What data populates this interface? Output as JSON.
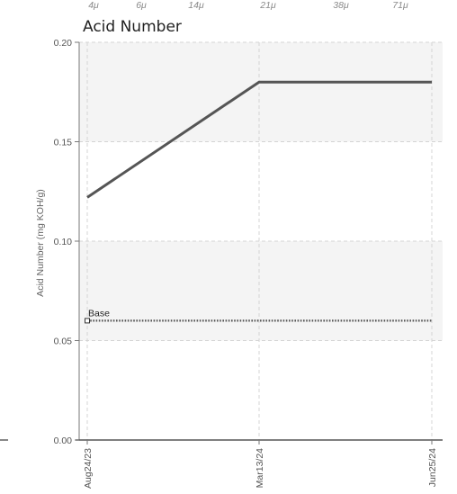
{
  "top_labels": [
    "4μ",
    "6μ",
    "14μ",
    "21μ",
    "38μ",
    "71μ"
  ],
  "chart_data": {
    "type": "line",
    "title": "Acid Number",
    "ylabel": "Acid Number (mg KOH/g)",
    "xlabel": "",
    "ylim": [
      0,
      0.2
    ],
    "yticks": [
      0.0,
      0.05,
      0.1,
      0.15,
      0.2
    ],
    "ytick_labels": [
      "0.00",
      "0.05",
      "0.10",
      "0.15",
      "0.20"
    ],
    "categories": [
      "Aug24/23",
      "Mar13/24",
      "Jun25/24"
    ],
    "series": [
      {
        "values": [
          0.122,
          0.18,
          0.18
        ],
        "color": "#555555",
        "style": "solid"
      },
      {
        "name": "Base",
        "values": [
          0.06,
          0.06,
          0.06
        ],
        "color": "#555555",
        "style": "dotted"
      }
    ],
    "grid": true,
    "banded_background": true
  }
}
